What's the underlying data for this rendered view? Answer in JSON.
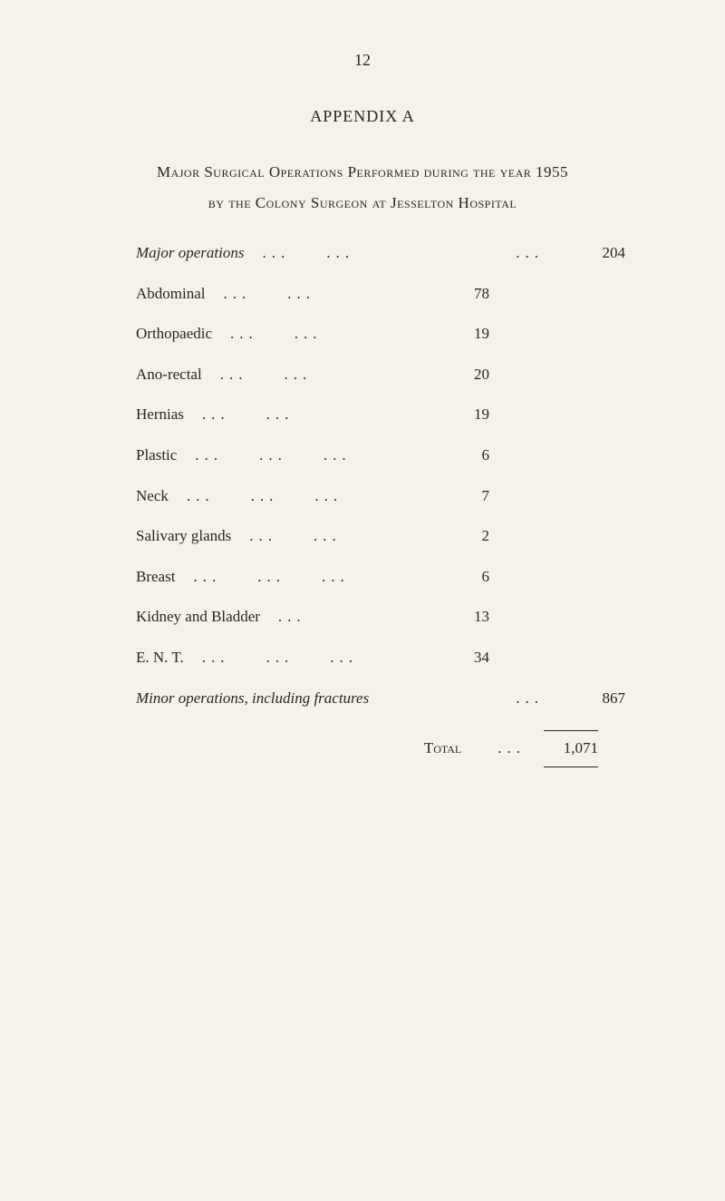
{
  "page_number": "12",
  "appendix_title": "APPENDIX A",
  "main_title_line1": "Major Surgical Operations Performed during the year 1955",
  "main_title_line2": "by the Colony Surgeon at Jesselton Hospital",
  "major_ops_label": "Major operations",
  "major_ops_value": "204",
  "items": [
    {
      "label": "Abdominal",
      "value": "78"
    },
    {
      "label": "Orthopaedic",
      "value": "19"
    },
    {
      "label": "Ano-rectal",
      "value": "20"
    },
    {
      "label": "Hernias",
      "value": "19"
    },
    {
      "label": "Plastic",
      "value": "6"
    },
    {
      "label": "Neck",
      "value": "7"
    },
    {
      "label": "Salivary glands",
      "value": "2"
    },
    {
      "label": "Breast",
      "value": "6"
    },
    {
      "label": "Kidney and Bladder",
      "value": "13"
    },
    {
      "label": "E. N. T.",
      "value": "34"
    }
  ],
  "minor_ops_label": "Minor operations, including fractures",
  "minor_ops_value": "867",
  "total_label": "Total",
  "total_value": "1,071",
  "dots": "...",
  "colors": {
    "background": "#f5f2ea",
    "text": "#2a2520"
  }
}
